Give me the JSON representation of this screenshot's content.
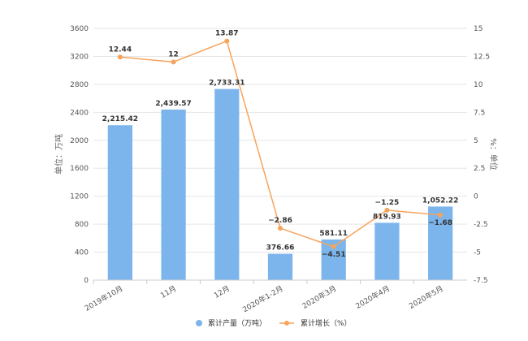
{
  "chart_data": {
    "type": "bar",
    "categories": [
      "2019年10月",
      "11月",
      "12月",
      "2020年1-2月",
      "2020年3月",
      "2020年4月",
      "2020年5月"
    ],
    "series": [
      {
        "name": "累计产量（万吨）",
        "kind": "bar",
        "axis": "left",
        "color": "#7cb5ec",
        "values": [
          2215.42,
          2439.57,
          2733.31,
          376.66,
          581.11,
          819.93,
          1052.22
        ],
        "labels": [
          "2,215.42",
          "2,439.57",
          "2,733.31",
          "376.66",
          "581.11",
          "819.93",
          "1,052.22"
        ]
      },
      {
        "name": "累计增长（%）",
        "kind": "line",
        "axis": "right",
        "color": "#f7a35c",
        "values": [
          12.44,
          12,
          13.87,
          -2.86,
          -4.51,
          -1.25,
          -1.68
        ],
        "labels": [
          "12.44",
          "12",
          "13.87",
          "−2.86",
          "−4.51",
          "−1.25",
          "−1.68"
        ]
      }
    ],
    "y_left": {
      "label": "单位：万吨",
      "ylim": [
        0,
        3600
      ],
      "ticks": [
        0,
        400,
        800,
        1200,
        1600,
        2000,
        2400,
        2800,
        3200,
        3600
      ]
    },
    "y_right": {
      "label": "%：单位",
      "ylim": [
        -7.5,
        15
      ],
      "ticks": [
        -7.5,
        -5,
        -2.5,
        0,
        2.5,
        5,
        7.5,
        10,
        12.5,
        15
      ],
      "tick_labels": [
        "-7.5",
        "-5",
        "-2.5",
        "0",
        "2.5",
        "5",
        "7.5",
        "10",
        "12.5",
        "15"
      ]
    },
    "grid": true,
    "legend_position": "bottom-center",
    "title": ""
  },
  "colors": {
    "gridline": "#e6e6e6",
    "axis": "#cccccc"
  }
}
